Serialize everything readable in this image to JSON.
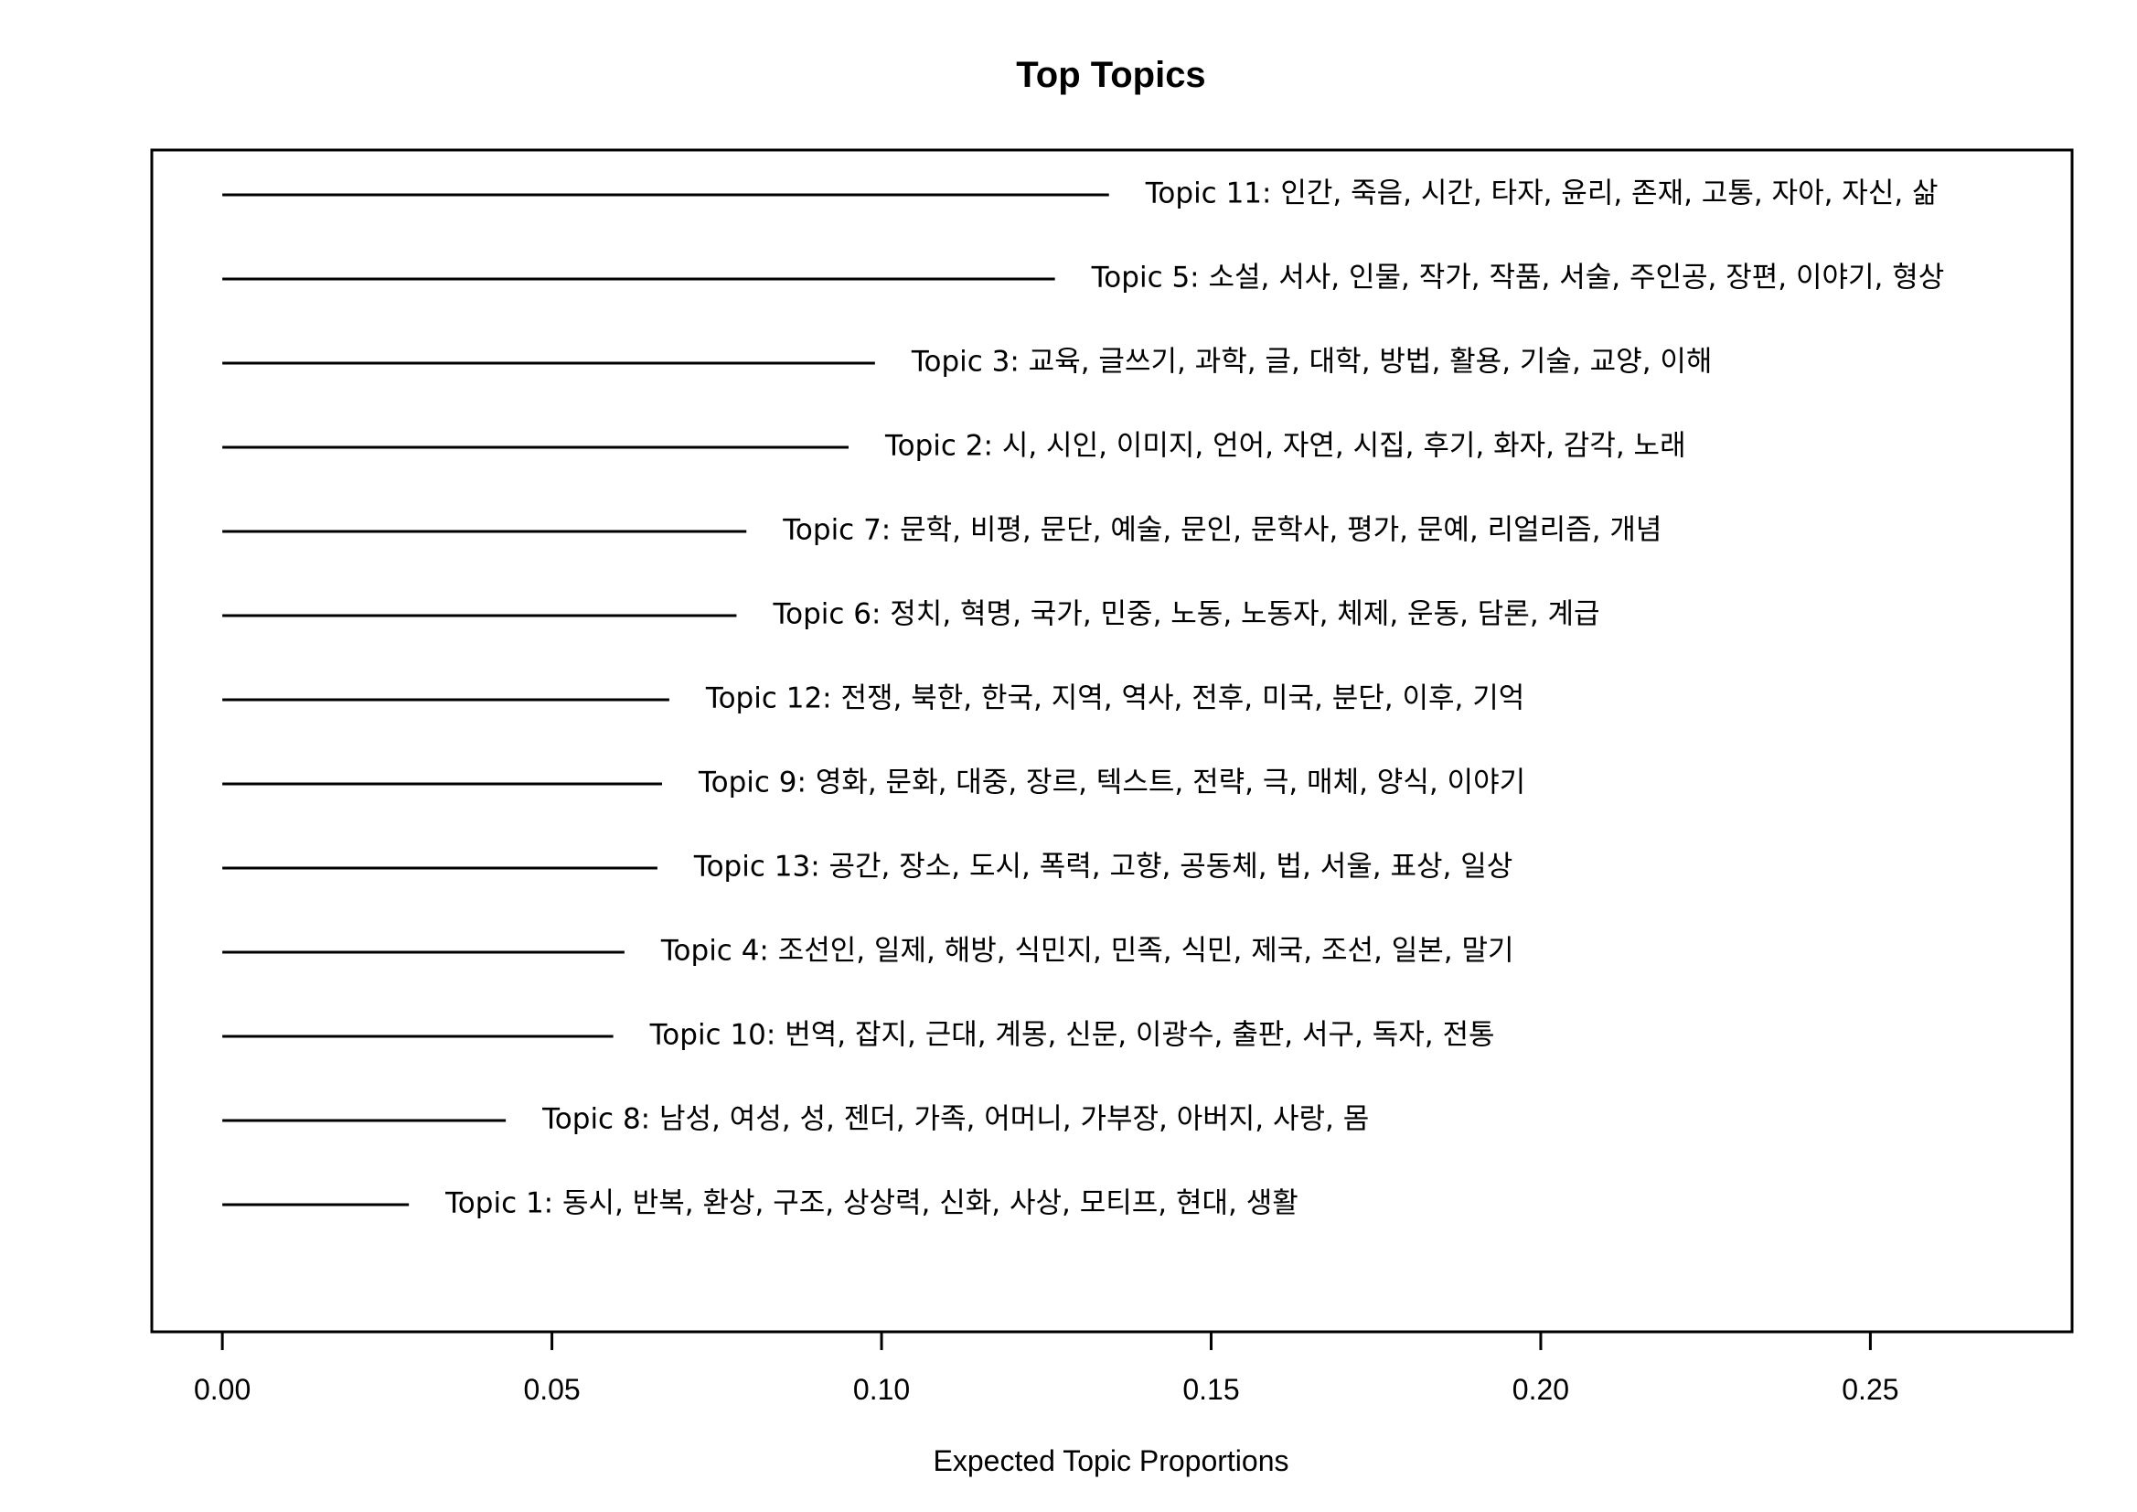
{
  "chart_data": {
    "type": "bar",
    "orientation": "horizontal",
    "title": "Top Topics",
    "xlabel": "Expected Topic Proportions",
    "ylabel": "",
    "xlim": [
      -0.0107,
      0.2806
    ],
    "xticks": [
      0.0,
      0.05,
      0.1,
      0.15,
      0.2,
      0.25
    ],
    "xtick_labels": [
      "0.00",
      "0.05",
      "0.10",
      "0.15",
      "0.20",
      "0.25"
    ],
    "grid": false,
    "legend": "none",
    "colors": {
      "line": "#000000",
      "background": "#ffffff"
    },
    "topics": [
      {
        "label": "Topic 11: 인간, 죽음, 시간, 타자, 윤리, 존재, 고통, 자아, 자신, 삶",
        "value": 0.1345
      },
      {
        "label": "Topic 5: 소설, 서사, 인물, 작가, 작품, 서술, 주인공, 장편, 이야기, 형상",
        "value": 0.1263
      },
      {
        "label": "Topic 3: 교육, 글쓰기, 과학, 글, 대학, 방법, 활용, 기술, 교양, 이해",
        "value": 0.099
      },
      {
        "label": "Topic 2: 시, 시인, 이미지, 언어, 자연, 시집, 후기, 화자, 감각, 노래",
        "value": 0.095
      },
      {
        "label": "Topic 7: 문학, 비평, 문단, 예술, 문인, 문학사, 평가, 문예, 리얼리즘, 개념",
        "value": 0.0795
      },
      {
        "label": "Topic 6: 정치, 혁명, 국가, 민중, 노동, 노동자, 체제, 운동, 담론, 계급",
        "value": 0.078
      },
      {
        "label": "Topic 12: 전쟁, 북한, 한국, 지역, 역사, 전후, 미국, 분단, 이후, 기억",
        "value": 0.0678
      },
      {
        "label": "Topic 9: 영화, 문화, 대중, 장르, 텍스트, 전략, 극, 매체, 양식, 이야기",
        "value": 0.0667
      },
      {
        "label": "Topic 13: 공간, 장소, 도시, 폭력, 고향, 공동체, 법, 서울, 표상, 일상",
        "value": 0.066
      },
      {
        "label": "Topic 4: 조선인, 일제, 해방, 식민지, 민족, 식민, 제국, 조선, 일본, 말기",
        "value": 0.061
      },
      {
        "label": "Topic 10: 번역, 잡지, 근대, 계몽, 신문, 이광수, 출판, 서구, 독자, 전통",
        "value": 0.0593
      },
      {
        "label": "Topic 8: 남성, 여성, 성, 젠더, 가족, 어머니, 가부장, 아버지, 사랑, 몸",
        "value": 0.043
      },
      {
        "label": "Topic 1: 동시, 반복, 환상, 구조, 상상력, 신화, 사상, 모티프, 현대, 생활",
        "value": 0.0283
      }
    ]
  }
}
